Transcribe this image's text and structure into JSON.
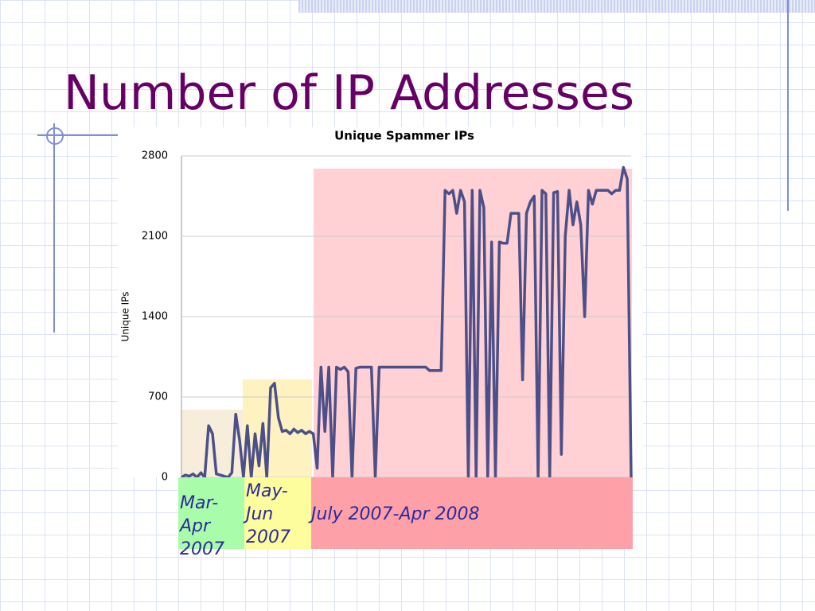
{
  "slide_title": "Number of IP Addresses",
  "chart_data": {
    "type": "line",
    "title": "Unique Spammer IPs",
    "y_label": "Unique IPs",
    "color": "#4d5088",
    "ylim": [
      0,
      2800
    ],
    "yticks": [
      0,
      700,
      1400,
      2100,
      2800
    ],
    "grid": true,
    "values": [
      0,
      20,
      10,
      30,
      0,
      40,
      0,
      450,
      380,
      30,
      20,
      10,
      0,
      40,
      550,
      320,
      0,
      450,
      0,
      380,
      100,
      470,
      0,
      780,
      820,
      520,
      400,
      410,
      380,
      420,
      390,
      410,
      380,
      400,
      380,
      80,
      960,
      400,
      960,
      0,
      960,
      940,
      960,
      920,
      0,
      950,
      960,
      960,
      960,
      960,
      0,
      960,
      960,
      960,
      960,
      960,
      960,
      960,
      960,
      960,
      960,
      960,
      960,
      960,
      930,
      930,
      930,
      930,
      2500,
      2470,
      2500,
      2300,
      2500,
      2400,
      0,
      2500,
      0,
      2500,
      2350,
      0,
      2050,
      0,
      2050,
      2040,
      2040,
      2300,
      2300,
      2300,
      850,
      2300,
      2400,
      2450,
      0,
      2500,
      2470,
      0,
      2480,
      2490,
      200,
      2100,
      2500,
      2200,
      2400,
      2200,
      1400,
      2500,
      2380,
      2500,
      2500,
      2500,
      2500,
      2470,
      2500,
      2500,
      2700,
      2600,
      0
    ]
  },
  "periods": [
    "Mar-Apr 2007",
    "May-Jun 2007",
    "July 2007-Apr 2008"
  ]
}
